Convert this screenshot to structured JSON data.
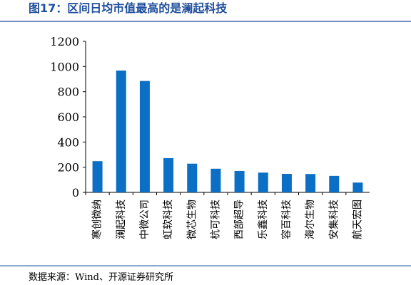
{
  "chart_data": {
    "type": "bar",
    "title": "图17：区间日均市值最高的是澜起科技",
    "xlabel": "",
    "ylabel": "",
    "ylim": [
      0,
      1200
    ],
    "yticks": [
      0,
      200,
      400,
      600,
      800,
      1000,
      1200
    ],
    "grid": false,
    "categories": [
      "寒创微纳",
      "澜起科技",
      "中微公司",
      "虹软科技",
      "微芯生物",
      "杭可科技",
      "西部超导",
      "乐鑫科技",
      "容百科技",
      "海尔生物",
      "安集科技",
      "航天宏图"
    ],
    "values": [
      248,
      968,
      885,
      272,
      228,
      188,
      170,
      157,
      147,
      146,
      131,
      78
    ],
    "source": "数据来源：Wind、开源证券研究所",
    "colors": {
      "bar": "#0c6fc6",
      "title": "#1f4e9c",
      "rule": "#1f4e9c",
      "axis": "#000000"
    }
  }
}
